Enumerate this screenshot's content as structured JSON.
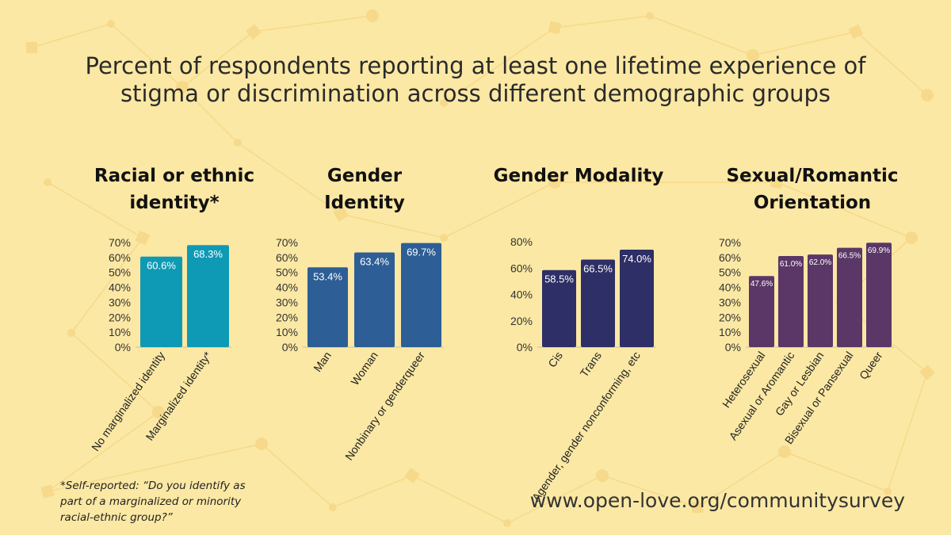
{
  "title": {
    "line1": "Percent of respondents reporting at least one lifetime experience of",
    "line2": "stigma or discrimination across different demographic groups"
  },
  "panels": [
    {
      "title_lines": [
        "Racial or ethnic",
        "identity*"
      ],
      "color": "#0e9ab5",
      "chart_data": {
        "type": "bar",
        "categories": [
          "No marginalized identity",
          "Marginalized identity*"
        ],
        "values": [
          60.6,
          68.3
        ],
        "labels": [
          "60.6%",
          "68.3%"
        ],
        "ylim": [
          0,
          70
        ],
        "yticks": [
          "0%",
          "10%",
          "20%",
          "30%",
          "40%",
          "50%",
          "60%",
          "70%"
        ],
        "title": "Racial or ethnic identity*",
        "xlabel": "",
        "ylabel": ""
      }
    },
    {
      "title_lines": [
        "Gender",
        "Identity"
      ],
      "color": "#2d5e96",
      "chart_data": {
        "type": "bar",
        "categories": [
          "Man",
          "Woman",
          "Nonbinary or genderqueer"
        ],
        "values": [
          53.4,
          63.4,
          69.7
        ],
        "labels": [
          "53.4%",
          "63.4%",
          "69.7%"
        ],
        "ylim": [
          0,
          70
        ],
        "yticks": [
          "0%",
          "10%",
          "20%",
          "30%",
          "40%",
          "50%",
          "60%",
          "70%"
        ],
        "title": "Gender Identity",
        "xlabel": "",
        "ylabel": ""
      }
    },
    {
      "title_lines": [
        "Gender Modality"
      ],
      "color": "#2e2f66",
      "chart_data": {
        "type": "bar",
        "categories": [
          "Cis",
          "Trans",
          "Agender, gender nonconforming, etc"
        ],
        "values": [
          58.5,
          66.5,
          74.0
        ],
        "labels": [
          "58.5%",
          "66.5%",
          "74.0%"
        ],
        "ylim": [
          0,
          80
        ],
        "yticks": [
          "0%",
          "20%",
          "40%",
          "60%",
          "80%"
        ],
        "title": "Gender Modality",
        "xlabel": "",
        "ylabel": ""
      }
    },
    {
      "title_lines": [
        "Sexual/Romantic",
        "Orientation"
      ],
      "color": "#5a3767",
      "chart_data": {
        "type": "bar",
        "categories": [
          "Heterosexual",
          "Asexual or Aromantic",
          "Gay or Lesbian",
          "Bisexual or Pansexual",
          "Queer"
        ],
        "values": [
          47.6,
          61.0,
          62.0,
          66.5,
          69.9
        ],
        "labels": [
          "47.6%",
          "61.0%",
          "62.0%",
          "66.5%",
          "69.9%"
        ],
        "ylim": [
          0,
          70
        ],
        "yticks": [
          "0%",
          "10%",
          "20%",
          "30%",
          "40%",
          "50%",
          "60%",
          "70%"
        ],
        "title": "Sexual/Romantic Orientation",
        "xlabel": "",
        "ylabel": ""
      }
    }
  ],
  "footnote": "*Self-reported: “Do you identify as part of a marginalized or minority racial-ethnic group?”",
  "url": "www.open-love.org/communitysurvey"
}
